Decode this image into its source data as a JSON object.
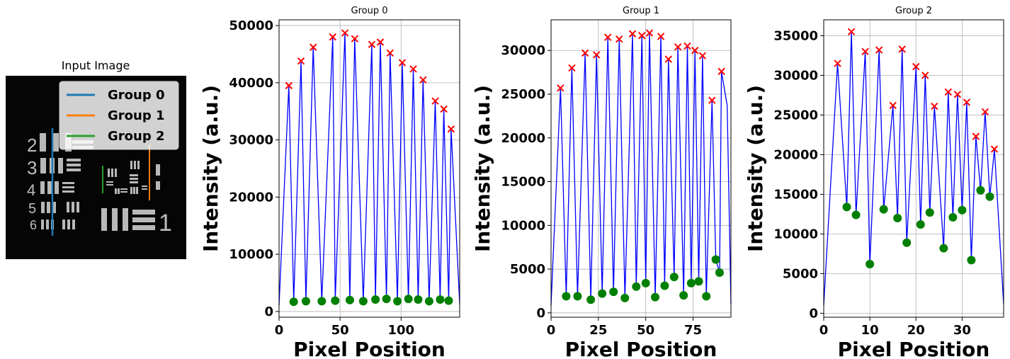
{
  "figure": {
    "input_image": {
      "title": "Input Image",
      "legend": [
        {
          "label": "Group 0",
          "color": "#1f77b4"
        },
        {
          "label": "Group 1",
          "color": "#ff7f0e"
        },
        {
          "label": "Group 2",
          "color": "#2ca02c"
        }
      ],
      "target_labels": [
        "2",
        "3",
        "4",
        "5",
        "6",
        "1"
      ]
    }
  },
  "chart_data": [
    {
      "type": "line",
      "title": "Group 0",
      "xlabel": "Pixel Position",
      "ylabel": "Intensity (a.u.)",
      "xlim": [
        0,
        148
      ],
      "ylim": [
        -1000,
        51000
      ],
      "xticks": [
        0,
        50,
        100
      ],
      "yticks": [
        0,
        10000,
        20000,
        30000,
        40000,
        50000
      ],
      "grid": true,
      "line_color": "#0000ff",
      "peak_color": "#ff0000",
      "valley_color": "#008000",
      "peaks": {
        "x": [
          8,
          18,
          28,
          44,
          54,
          62,
          76,
          83,
          91,
          101,
          110,
          118,
          128,
          135,
          141
        ],
        "y": [
          39500,
          43800,
          46200,
          48000,
          48700,
          47700,
          46700,
          47100,
          45200,
          43500,
          42400,
          40500,
          36800,
          35400,
          31900
        ]
      },
      "valleys": {
        "x": [
          12,
          22,
          35,
          46,
          58,
          69,
          79,
          88,
          97,
          106,
          114,
          123,
          132,
          139
        ],
        "y": [
          1700,
          1800,
          1800,
          1900,
          2000,
          1800,
          2100,
          2200,
          1800,
          2200,
          2100,
          1800,
          2100,
          1900
        ]
      }
    },
    {
      "type": "line",
      "title": "Group 1",
      "xlabel": "Pixel Position",
      "ylabel": "Intensity (a.u.)",
      "xlim": [
        0,
        95
      ],
      "ylim": [
        -500,
        33500
      ],
      "xticks": [
        0,
        25,
        50,
        75
      ],
      "yticks": [
        0,
        5000,
        10000,
        15000,
        20000,
        25000,
        30000
      ],
      "grid": true,
      "line_color": "#0000ff",
      "peak_color": "#ff0000",
      "valley_color": "#008000",
      "peaks": {
        "x": [
          5,
          11,
          18,
          24,
          30,
          36,
          43,
          48,
          52,
          58,
          62,
          67,
          72,
          76,
          80,
          85,
          90
        ],
        "y": [
          25700,
          28000,
          29700,
          29500,
          31500,
          31300,
          31900,
          31700,
          32000,
          31600,
          29000,
          30400,
          30500,
          30000,
          29400,
          24300,
          27600
        ]
      },
      "valleys": {
        "x": [
          8,
          14,
          21,
          27,
          33,
          39,
          45,
          50,
          55,
          60,
          65,
          70,
          74,
          78,
          82,
          87,
          89
        ],
        "y": [
          1900,
          1900,
          1500,
          2200,
          2400,
          1700,
          3000,
          3400,
          1800,
          3100,
          4100,
          2000,
          3400,
          3600,
          1900,
          6100,
          4600
        ]
      },
      "extra_peak": {
        "x": 93,
        "y": 23700
      }
    },
    {
      "type": "line",
      "title": "Group 2",
      "xlabel": "Pixel Position",
      "ylabel": "Intensity (a.u.)",
      "xlim": [
        0,
        39
      ],
      "ylim": [
        -500,
        37000
      ],
      "xticks": [
        0,
        10,
        20,
        30
      ],
      "yticks": [
        0,
        5000,
        10000,
        15000,
        20000,
        25000,
        30000,
        35000
      ],
      "grid": true,
      "line_color": "#0000ff",
      "peak_color": "#ff0000",
      "valley_color": "#008000",
      "peaks": {
        "x": [
          3,
          6,
          9,
          12,
          15,
          17,
          20,
          22,
          24,
          27,
          29,
          31,
          33,
          35,
          37
        ],
        "y": [
          31500,
          35500,
          33000,
          33200,
          26200,
          33300,
          31100,
          30000,
          26100,
          27900,
          27600,
          26600,
          22300,
          25400,
          20700
        ]
      },
      "valleys": {
        "x": [
          5,
          7,
          10,
          13,
          16,
          18,
          21,
          23,
          26,
          28,
          30,
          32,
          34,
          36
        ],
        "y": [
          13400,
          12400,
          6200,
          13100,
          12000,
          8900,
          11200,
          12700,
          8200,
          12100,
          13000,
          6700,
          15500,
          14700
        ]
      }
    }
  ]
}
